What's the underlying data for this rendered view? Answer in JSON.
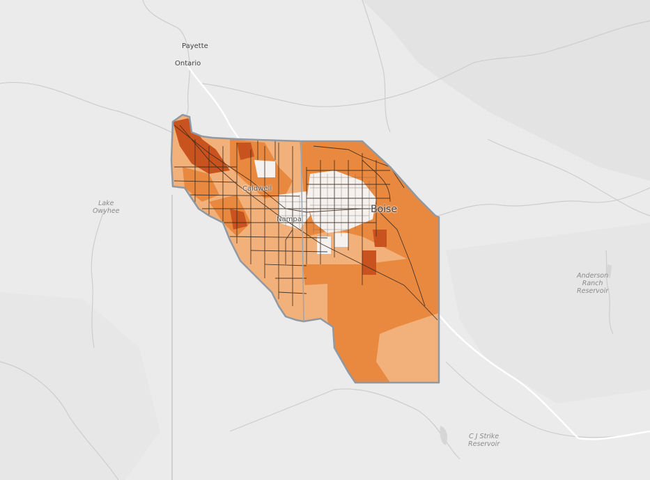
{
  "map": {
    "colors": {
      "background": "#ebebeb",
      "terrain": "#e4e4e4",
      "rivers": "#c9c9c9",
      "highway": "#ffffff",
      "class_low": "#f2b17a",
      "class_mid": "#e8893f",
      "class_high": "#c8531f",
      "class_none": "#f4f1ee",
      "county_outline": "#8f99a3",
      "road_network": "#3b2a20"
    },
    "labels": {
      "payette": "Payette",
      "ontario": "Ontario",
      "caldwell": "Caldwell",
      "nampa": "Nampa",
      "boise": "Boise",
      "lake_owyhee_1": "Lake",
      "lake_owyhee_2": "Owyhee",
      "anderson_1": "Anderson",
      "anderson_2": "Ranch",
      "anderson_3": "Reservoir",
      "cj_strike_1": "C J Strike",
      "cj_strike_2": "Reservoir"
    }
  }
}
